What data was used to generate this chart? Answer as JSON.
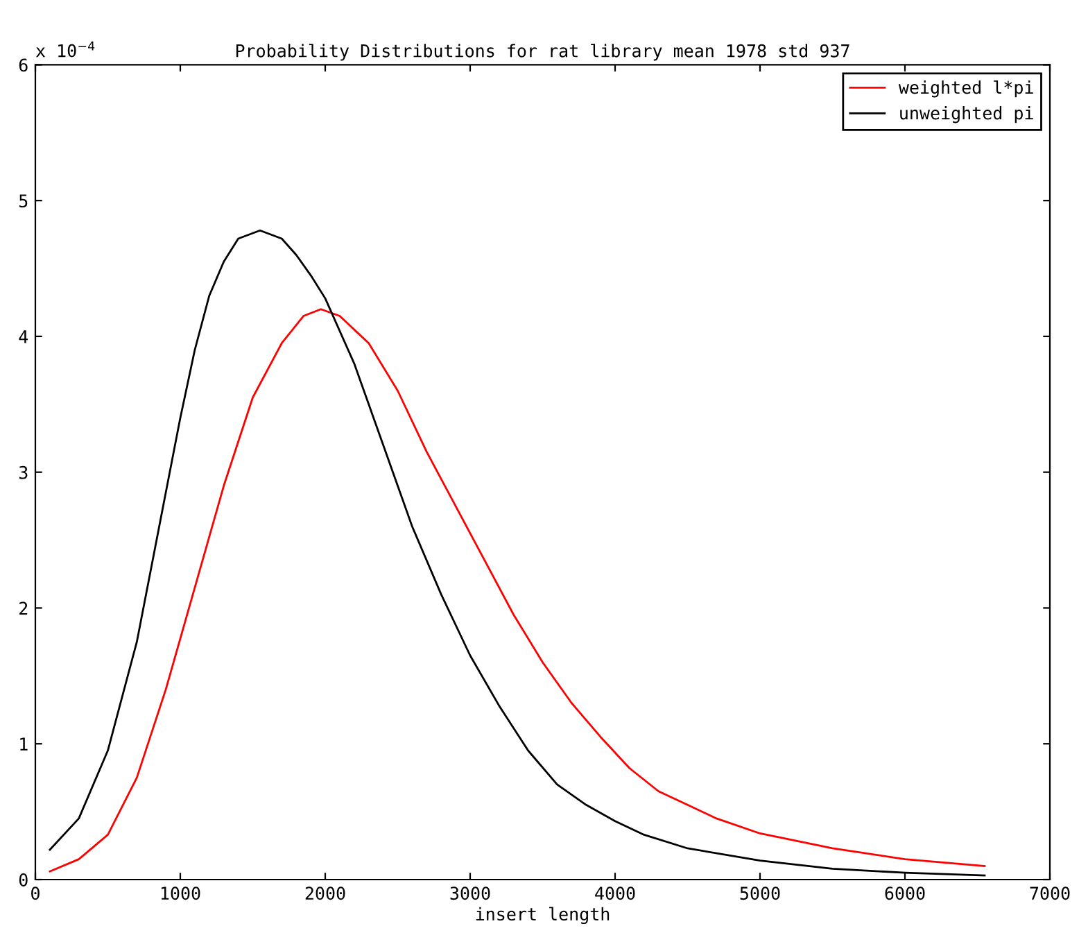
{
  "chart_data": {
    "type": "line",
    "title": "Probability Distributions for rat library mean 1978 std 937",
    "xlabel": "insert length",
    "annotations": [
      "x 10$^{−4}$"
    ],
    "xlim": [
      0,
      7000
    ],
    "xticks": [
      0,
      1000,
      2000,
      3000,
      4000,
      5000,
      6000,
      7000
    ],
    "ylim": [
      0,
      6
    ],
    "yticks": [
      0,
      1,
      2,
      3,
      4,
      5,
      6
    ],
    "grid": false,
    "legend": "top right",
    "marker": "none",
    "line_style": "solid",
    "series": [
      {
        "name": "weighted l*pi",
        "color": "#ff0000",
        "x": [
          100,
          300,
          500,
          700,
          900,
          1100,
          1300,
          1500,
          1700,
          1850,
          1970,
          2100,
          2300,
          2500,
          2700,
          2900,
          3100,
          3300,
          3500,
          3700,
          3900,
          4100,
          4300,
          4500,
          4700,
          5000,
          5500,
          6000,
          6550
        ],
        "values": [
          0.06,
          0.15,
          0.33,
          0.75,
          1.4,
          2.15,
          2.9,
          3.55,
          3.95,
          4.15,
          4.2,
          4.15,
          3.95,
          3.6,
          3.15,
          2.75,
          2.35,
          1.95,
          1.6,
          1.3,
          1.05,
          0.82,
          0.65,
          0.55,
          0.45,
          0.34,
          0.23,
          0.15,
          0.1
        ]
      },
      {
        "name": "unweighted pi",
        "color": "#000000",
        "x": [
          100,
          300,
          500,
          700,
          900,
          1000,
          1100,
          1200,
          1300,
          1400,
          1550,
          1700,
          1800,
          1900,
          2000,
          2200,
          2400,
          2600,
          2800,
          3000,
          3200,
          3400,
          3600,
          3800,
          4000,
          4200,
          4500,
          5000,
          5500,
          6000,
          6550
        ],
        "values": [
          0.22,
          0.45,
          0.95,
          1.75,
          2.85,
          3.4,
          3.9,
          4.3,
          4.55,
          4.72,
          4.78,
          4.72,
          4.6,
          4.45,
          4.28,
          3.8,
          3.2,
          2.6,
          2.1,
          1.65,
          1.28,
          0.95,
          0.7,
          0.55,
          0.43,
          0.33,
          0.23,
          0.14,
          0.08,
          0.05,
          0.03
        ]
      }
    ]
  }
}
